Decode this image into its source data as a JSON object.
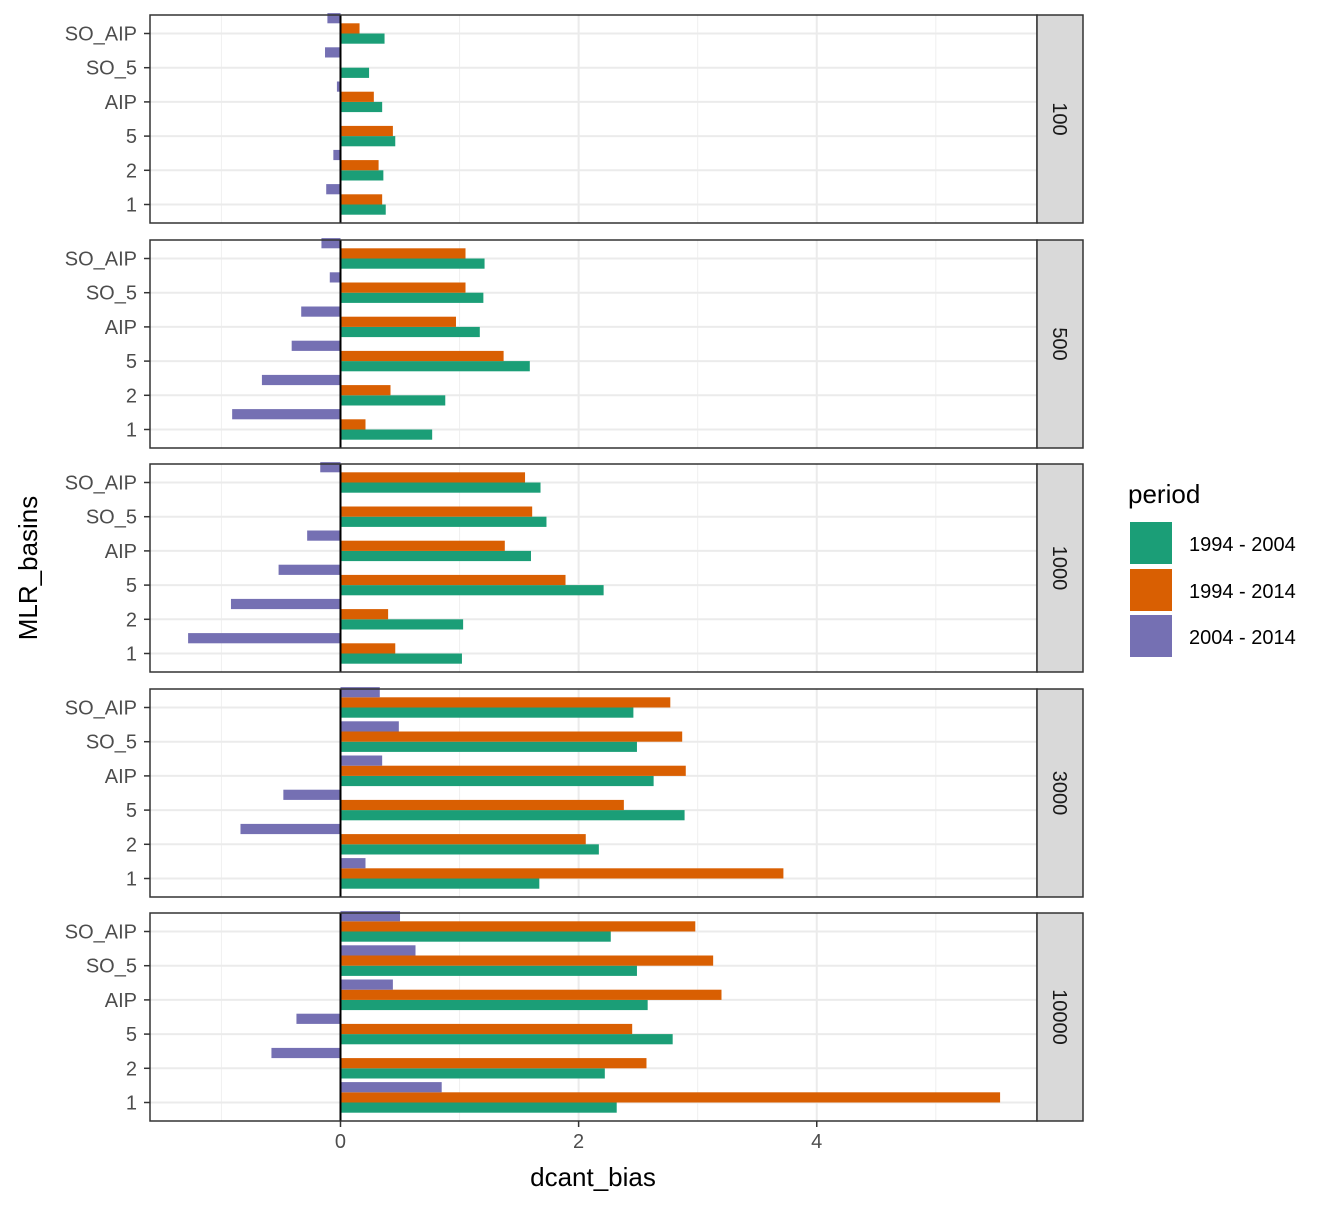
{
  "chart_data": {
    "type": "bar",
    "orientation": "horizontal",
    "xlabel": "dcant_bias",
    "ylabel": "MLR_basins",
    "xlim": [
      -1.6,
      5.85
    ],
    "x_ticks": [
      0,
      2,
      4
    ],
    "x_tick_labels": [
      "0",
      "2",
      "4"
    ],
    "grid": true,
    "categories": [
      "1",
      "2",
      "5",
      "AIP",
      "SO_5",
      "SO_AIP"
    ],
    "legend": {
      "title": "period",
      "placement": "right",
      "entries": [
        "1994 - 2004",
        "1994 - 2014",
        "2004 - 2014"
      ]
    },
    "series_colors": {
      "1994 - 2004": "#1b9e77",
      "1994 - 2014": "#d95f02",
      "2004 - 2014": "#7570b3"
    },
    "facets": [
      {
        "label": "100",
        "series": [
          {
            "name": "1994 - 2004",
            "values": [
              0.38,
              0.36,
              0.46,
              0.35,
              0.24,
              0.37
            ]
          },
          {
            "name": "1994 - 2014",
            "values": [
              0.35,
              0.32,
              0.44,
              0.28,
              0.0,
              0.16
            ]
          },
          {
            "name": "2004 - 2014",
            "values": [
              -0.12,
              -0.06,
              0.0,
              -0.03,
              -0.13,
              -0.11
            ]
          }
        ]
      },
      {
        "label": "500",
        "series": [
          {
            "name": "1994 - 2004",
            "values": [
              0.77,
              0.88,
              1.59,
              1.17,
              1.2,
              1.21
            ]
          },
          {
            "name": "1994 - 2014",
            "values": [
              0.21,
              0.42,
              1.37,
              0.97,
              1.05,
              1.05
            ]
          },
          {
            "name": "2004 - 2014",
            "values": [
              -0.91,
              -0.66,
              -0.41,
              -0.33,
              -0.09,
              -0.16
            ]
          }
        ]
      },
      {
        "label": "1000",
        "series": [
          {
            "name": "1994 - 2004",
            "values": [
              1.02,
              1.03,
              2.21,
              1.6,
              1.73,
              1.68
            ]
          },
          {
            "name": "1994 - 2014",
            "values": [
              0.46,
              0.4,
              1.89,
              1.38,
              1.61,
              1.55
            ]
          },
          {
            "name": "2004 - 2014",
            "values": [
              -1.28,
              -0.92,
              -0.52,
              -0.28,
              0.0,
              -0.17
            ]
          }
        ]
      },
      {
        "label": "3000",
        "series": [
          {
            "name": "1994 - 2004",
            "values": [
              1.67,
              2.17,
              2.89,
              2.63,
              2.49,
              2.46
            ]
          },
          {
            "name": "1994 - 2014",
            "values": [
              3.72,
              2.06,
              2.38,
              2.9,
              2.87,
              2.77
            ]
          },
          {
            "name": "2004 - 2014",
            "values": [
              0.21,
              -0.84,
              -0.48,
              0.35,
              0.49,
              0.33
            ]
          }
        ]
      },
      {
        "label": "10000",
        "series": [
          {
            "name": "1994 - 2004",
            "values": [
              2.32,
              2.22,
              2.79,
              2.58,
              2.49,
              2.27
            ]
          },
          {
            "name": "1994 - 2014",
            "values": [
              5.54,
              2.57,
              2.45,
              3.2,
              3.13,
              2.98
            ]
          },
          {
            "name": "2004 - 2014",
            "values": [
              0.85,
              -0.58,
              -0.37,
              0.44,
              0.63,
              0.5
            ]
          }
        ]
      }
    ]
  }
}
